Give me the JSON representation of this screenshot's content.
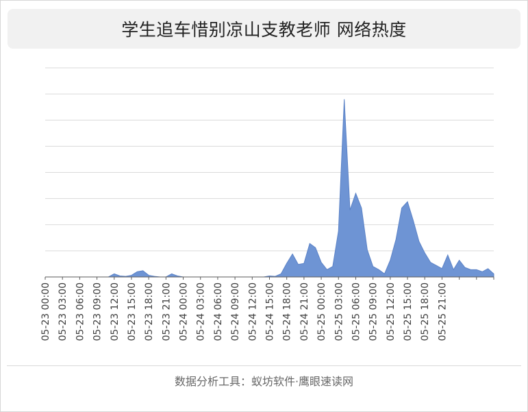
{
  "title": "学生追车惜别凉山支教老师 网络热度",
  "footer": "数据分析工具：蚁坊软件·鹰眼速读网",
  "colors": {
    "area_fill": "#6e94d4",
    "area_stroke": "#5b82c6",
    "grid": "#d9d9d9",
    "title_bg": "#f1f1f1"
  },
  "chart_data": {
    "type": "area",
    "ylim": [
      0,
      100
    ],
    "grid": true,
    "y_tick_labels_shown": false,
    "legend": "none",
    "x_tick_labels": [
      "05-23 00:00",
      "05-23 03:00",
      "05-23 06:00",
      "05-23 09:00",
      "05-23 12:00",
      "05-23 15:00",
      "05-23 18:00",
      "05-23 21:00",
      "05-24 00:00",
      "05-24 03:00",
      "05-24 06:00",
      "05-24 09:00",
      "05-24 12:00",
      "05-24 15:00",
      "05-24 18:00",
      "05-24 21:00",
      "05-25 00:00",
      "05-25 03:00",
      "05-25 06:00",
      "05-25 09:00",
      "05-25 12:00",
      "05-25 15:00",
      "05-25 18:00",
      "05-25 21:00"
    ],
    "values": [
      0,
      0,
      0,
      0,
      0,
      0,
      0,
      0,
      0,
      0,
      0,
      0,
      1.5,
      0.5,
      0.3,
      0.8,
      2.5,
      3,
      0.8,
      0.3,
      0,
      0,
      1.5,
      0.5,
      0,
      0,
      0,
      0,
      0,
      0,
      0,
      0,
      0,
      0,
      0,
      0,
      0,
      0,
      0,
      0.5,
      0.3,
      1.5,
      6.5,
      11,
      6,
      6.5,
      16,
      14,
      7,
      3.5,
      5,
      22,
      85,
      32,
      40,
      33,
      13,
      5,
      3.5,
      1.5,
      8,
      18,
      33,
      36,
      27,
      17,
      11.5,
      7,
      5.5,
      4,
      10.5,
      3.5,
      8,
      4.5,
      3.5,
      3.5,
      2.5,
      4,
      1.5
    ]
  }
}
